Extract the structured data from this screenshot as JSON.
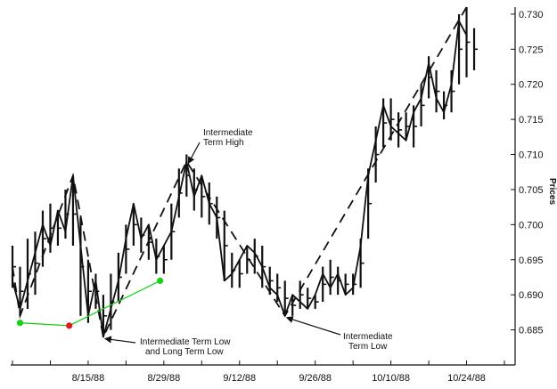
{
  "chart_data": {
    "type": "bar",
    "subtype": "ohlc-price-bars-with-swing-lines",
    "ylabel": "Prices",
    "ylim": [
      0.68,
      0.731
    ],
    "y_ticks": [
      "0.685",
      "0.690",
      "0.695",
      "0.700",
      "0.705",
      "0.710",
      "0.715",
      "0.720",
      "0.725",
      "0.730"
    ],
    "x_tick_labels": [
      "8/15/88",
      "8/29/88",
      "9/12/88",
      "9/26/88",
      "10/10/88",
      "10/24/88"
    ],
    "x_tick_positions": [
      10,
      20,
      30,
      40,
      50,
      60
    ],
    "xlim": [
      0,
      65
    ],
    "bars": [
      {
        "x": 0,
        "high": 0.697,
        "low": 0.691
      },
      {
        "x": 1,
        "high": 0.694,
        "low": 0.687
      },
      {
        "x": 2,
        "high": 0.698,
        "low": 0.688
      },
      {
        "x": 3,
        "high": 0.699,
        "low": 0.69
      },
      {
        "x": 4,
        "high": 0.702,
        "low": 0.694
      },
      {
        "x": 5,
        "high": 0.703,
        "low": 0.696
      },
      {
        "x": 6,
        "high": 0.702,
        "low": 0.697
      },
      {
        "x": 7,
        "high": 0.705,
        "low": 0.698
      },
      {
        "x": 8,
        "high": 0.706,
        "low": 0.697
      },
      {
        "x": 9,
        "high": 0.701,
        "low": 0.687
      },
      {
        "x": 10,
        "high": 0.695,
        "low": 0.686
      },
      {
        "x": 11,
        "high": 0.693,
        "low": 0.688
      },
      {
        "x": 12,
        "high": 0.69,
        "low": 0.684
      },
      {
        "x": 13,
        "high": 0.693,
        "low": 0.685
      },
      {
        "x": 14,
        "high": 0.696,
        "low": 0.689
      },
      {
        "x": 15,
        "high": 0.7,
        "low": 0.693
      },
      {
        "x": 16,
        "high": 0.703,
        "low": 0.697
      },
      {
        "x": 17,
        "high": 0.701,
        "low": 0.696
      },
      {
        "x": 18,
        "high": 0.7,
        "low": 0.695
      },
      {
        "x": 19,
        "high": 0.698,
        "low": 0.693
      },
      {
        "x": 20,
        "high": 0.697,
        "low": 0.693
      },
      {
        "x": 21,
        "high": 0.703,
        "low": 0.695
      },
      {
        "x": 22,
        "high": 0.708,
        "low": 0.701
      },
      {
        "x": 23,
        "high": 0.71,
        "low": 0.704
      },
      {
        "x": 24,
        "high": 0.708,
        "low": 0.702
      },
      {
        "x": 25,
        "high": 0.707,
        "low": 0.701
      },
      {
        "x": 26,
        "high": 0.706,
        "low": 0.7
      },
      {
        "x": 27,
        "high": 0.704,
        "low": 0.698
      },
      {
        "x": 28,
        "high": 0.702,
        "low": 0.692
      },
      {
        "x": 29,
        "high": 0.696,
        "low": 0.691
      },
      {
        "x": 30,
        "high": 0.695,
        "low": 0.691
      },
      {
        "x": 31,
        "high": 0.697,
        "low": 0.693
      },
      {
        "x": 32,
        "high": 0.698,
        "low": 0.693
      },
      {
        "x": 33,
        "high": 0.697,
        "low": 0.691
      },
      {
        "x": 34,
        "high": 0.694,
        "low": 0.69
      },
      {
        "x": 35,
        "high": 0.693,
        "low": 0.689
      },
      {
        "x": 36,
        "high": 0.692,
        "low": 0.687
      },
      {
        "x": 37,
        "high": 0.69,
        "low": 0.687
      },
      {
        "x": 38,
        "high": 0.692,
        "low": 0.688
      },
      {
        "x": 39,
        "high": 0.691,
        "low": 0.688
      },
      {
        "x": 40,
        "high": 0.69,
        "low": 0.688
      },
      {
        "x": 41,
        "high": 0.694,
        "low": 0.689
      },
      {
        "x": 42,
        "high": 0.695,
        "low": 0.69
      },
      {
        "x": 43,
        "high": 0.694,
        "low": 0.69
      },
      {
        "x": 44,
        "high": 0.693,
        "low": 0.69
      },
      {
        "x": 45,
        "high": 0.693,
        "low": 0.69
      },
      {
        "x": 46,
        "high": 0.698,
        "low": 0.691
      },
      {
        "x": 47,
        "high": 0.708,
        "low": 0.698
      },
      {
        "x": 48,
        "high": 0.714,
        "low": 0.706
      },
      {
        "x": 49,
        "high": 0.718,
        "low": 0.711
      },
      {
        "x": 50,
        "high": 0.718,
        "low": 0.712
      },
      {
        "x": 51,
        "high": 0.716,
        "low": 0.711
      },
      {
        "x": 52,
        "high": 0.716,
        "low": 0.712
      },
      {
        "x": 53,
        "high": 0.717,
        "low": 0.711
      },
      {
        "x": 54,
        "high": 0.72,
        "low": 0.714
      },
      {
        "x": 55,
        "high": 0.724,
        "low": 0.718
      },
      {
        "x": 56,
        "high": 0.722,
        "low": 0.716
      },
      {
        "x": 57,
        "high": 0.719,
        "low": 0.715
      },
      {
        "x": 58,
        "high": 0.722,
        "low": 0.716
      },
      {
        "x": 59,
        "high": 0.73,
        "low": 0.72
      },
      {
        "x": 60,
        "high": 0.731,
        "low": 0.721
      },
      {
        "x": 61,
        "high": 0.728,
        "low": 0.722
      }
    ],
    "swing_line": [
      [
        0,
        0.692
      ],
      [
        1,
        0.688
      ],
      [
        3,
        0.696
      ],
      [
        4,
        0.7
      ],
      [
        5,
        0.697
      ],
      [
        6,
        0.702
      ],
      [
        7,
        0.699
      ],
      [
        8,
        0.707
      ],
      [
        9,
        0.697
      ],
      [
        10,
        0.687
      ],
      [
        11,
        0.692
      ],
      [
        12,
        0.684
      ],
      [
        13,
        0.688
      ],
      [
        14,
        0.692
      ],
      [
        15,
        0.698
      ],
      [
        16,
        0.703
      ],
      [
        17,
        0.698
      ],
      [
        18,
        0.7
      ],
      [
        19,
        0.695
      ],
      [
        20,
        0.697
      ],
      [
        21,
        0.699
      ],
      [
        22,
        0.704
      ],
      [
        23,
        0.709
      ],
      [
        24,
        0.704
      ],
      [
        25,
        0.707
      ],
      [
        26,
        0.703
      ],
      [
        27,
        0.701
      ],
      [
        28,
        0.692
      ],
      [
        29,
        0.693
      ],
      [
        30,
        0.695
      ],
      [
        31,
        0.697
      ],
      [
        32,
        0.696
      ],
      [
        33,
        0.694
      ],
      [
        34,
        0.691
      ],
      [
        35,
        0.69
      ],
      [
        36,
        0.687
      ],
      [
        37,
        0.69
      ],
      [
        38,
        0.689
      ],
      [
        39,
        0.688
      ],
      [
        40,
        0.69
      ],
      [
        41,
        0.693
      ],
      [
        42,
        0.691
      ],
      [
        43,
        0.693
      ],
      [
        44,
        0.69
      ],
      [
        45,
        0.691
      ],
      [
        46,
        0.697
      ],
      [
        47,
        0.707
      ],
      [
        48,
        0.712
      ],
      [
        49,
        0.717
      ],
      [
        50,
        0.714
      ],
      [
        51,
        0.713
      ],
      [
        52,
        0.712
      ],
      [
        53,
        0.716
      ],
      [
        54,
        0.718
      ],
      [
        55,
        0.723
      ],
      [
        56,
        0.718
      ],
      [
        57,
        0.716
      ],
      [
        58,
        0.72
      ],
      [
        59,
        0.729
      ],
      [
        60,
        0.727
      ]
    ],
    "trend_line_dashed": [
      [
        0,
        0.694
      ],
      [
        1,
        0.687
      ],
      [
        8,
        0.707
      ],
      [
        12,
        0.684
      ],
      [
        23,
        0.709
      ],
      [
        36,
        0.687
      ],
      [
        60,
        0.731
      ]
    ],
    "green_markers": [
      {
        "x": 1,
        "y": 0.686,
        "color": "#19d119"
      },
      {
        "x": 7.5,
        "y": 0.6856,
        "color": "#e01b1b"
      },
      {
        "x": 19.5,
        "y": 0.692,
        "color": "#19d119"
      }
    ],
    "green_line_color": "#19d119",
    "annotations": [
      {
        "id": "ann-high",
        "lines": [
          "Intermediate",
          "Term High"
        ],
        "points_to": [
          23,
          0.709
        ]
      },
      {
        "id": "ann-low1",
        "lines": [
          "Intermediate Term Low",
          "and Long Term Low"
        ],
        "points_to": [
          12,
          0.684
        ]
      },
      {
        "id": "ann-low2",
        "lines": [
          "Intermediate",
          "Term Low"
        ],
        "points_to": [
          36,
          0.687
        ]
      }
    ]
  }
}
